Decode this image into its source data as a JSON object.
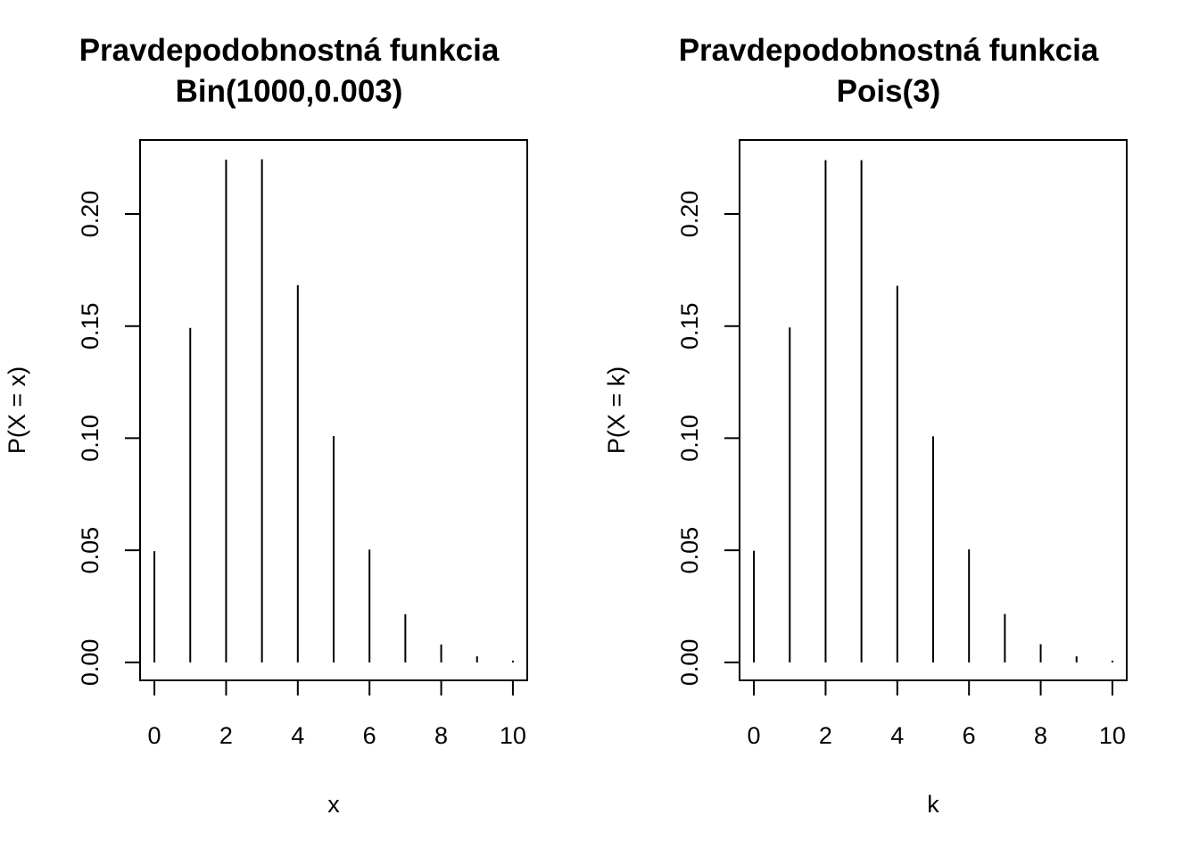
{
  "chart_data": [
    {
      "type": "bar",
      "title_lines": [
        "Pravdepodobnostná funkcia",
        "Bin(1000,0.003)"
      ],
      "xlabel": "x",
      "ylabel": "P(X = x)",
      "x": [
        0,
        1,
        2,
        3,
        4,
        5,
        6,
        7,
        8,
        9,
        10
      ],
      "values": [
        0.0496,
        0.1492,
        0.2242,
        0.2244,
        0.1683,
        0.1009,
        0.0503,
        0.0215,
        0.008,
        0.0027,
        0.0008
      ],
      "xlim": [
        -0.4,
        10.4
      ],
      "ylim": [
        -0.008,
        0.233
      ],
      "xticks": [
        "0",
        "2",
        "4",
        "6",
        "8",
        "10"
      ],
      "yticks": [
        "0.00",
        "0.05",
        "0.10",
        "0.15",
        "0.20"
      ],
      "grid": false
    },
    {
      "type": "bar",
      "title_lines": [
        "Pravdepodobnostná funkcia",
        "Pois(3)"
      ],
      "xlabel": "k",
      "ylabel": "P(X = k)",
      "x": [
        0,
        1,
        2,
        3,
        4,
        5,
        6,
        7,
        8,
        9,
        10
      ],
      "values": [
        0.0498,
        0.1494,
        0.224,
        0.224,
        0.168,
        0.1008,
        0.0504,
        0.0216,
        0.0081,
        0.0027,
        0.0008
      ],
      "xlim": [
        -0.4,
        10.4
      ],
      "ylim": [
        -0.008,
        0.233
      ],
      "xticks": [
        "0",
        "2",
        "4",
        "6",
        "8",
        "10"
      ],
      "yticks": [
        "0.00",
        "0.05",
        "0.10",
        "0.15",
        "0.20"
      ],
      "grid": false
    }
  ]
}
